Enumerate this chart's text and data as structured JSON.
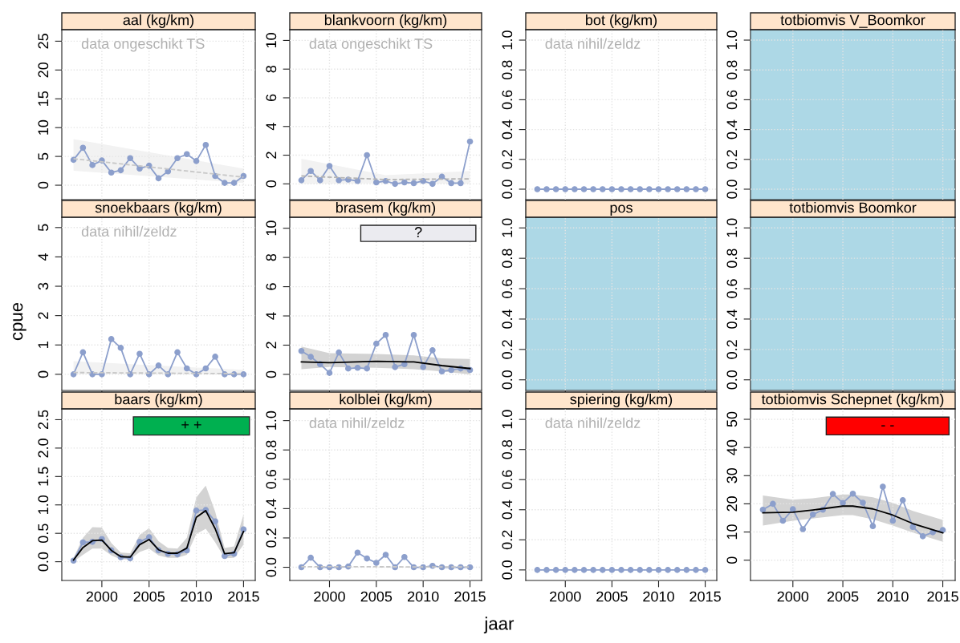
{
  "chart_data": [
    {
      "type": "line",
      "title": "aal (kg/km)",
      "x": [
        1997,
        1998,
        1999,
        2000,
        2001,
        2002,
        2003,
        2004,
        2005,
        2006,
        2007,
        2008,
        2009,
        2010,
        2011,
        2012,
        2013,
        2014,
        2015
      ],
      "xlim": [
        1995.76,
        2016.24
      ],
      "xticks": [
        2000,
        2005,
        2010,
        2015
      ],
      "ylim": [
        -2.5,
        27
      ],
      "yticks": [
        0,
        5,
        10,
        15,
        20,
        25
      ],
      "grid": true,
      "tick_labels": "y",
      "series": [
        {
          "color": "#8c9fcc",
          "marker": "circle",
          "values": [
            4.4,
            6.5,
            3.5,
            4.3,
            2.2,
            2.6,
            4.7,
            2.9,
            3.4,
            1.2,
            2.4,
            4.7,
            5.4,
            4.2,
            7.0,
            1.6,
            0.4,
            0.4,
            1.6
          ]
        },
        {
          "color": "#c8c8c8",
          "marker": "none",
          "line_style": "dashed",
          "x": [
            1997,
            2015
          ],
          "values": [
            4.6,
            1.4
          ],
          "lower": [
            2.5,
            0.4
          ],
          "upper": [
            8.0,
            2.9
          ]
        }
      ],
      "annotations": [
        "data ongeschikt TS"
      ]
    },
    {
      "type": "line",
      "title": "blankvoorn (kg/km)",
      "x": [
        1997,
        1998,
        1999,
        2000,
        2001,
        2002,
        2003,
        2004,
        2005,
        2006,
        2007,
        2008,
        2009,
        2010,
        2011,
        2012,
        2013,
        2014,
        2015
      ],
      "xlim": [
        1995.76,
        2016.24
      ],
      "xticks": [
        2000,
        2005,
        2010,
        2015
      ],
      "ylim": [
        -1.1,
        10.75
      ],
      "yticks": [
        0,
        2,
        4,
        6,
        8,
        10
      ],
      "grid": true,
      "tick_labels": "y",
      "series": [
        {
          "color": "#8c9fcc",
          "marker": "circle",
          "values": [
            0.25,
            0.9,
            0.25,
            1.25,
            0.25,
            0.3,
            0.2,
            2.0,
            0.1,
            0.2,
            0.0,
            0.1,
            0.05,
            0.2,
            0.0,
            0.5,
            0.05,
            0.05,
            2.95
          ]
        },
        {
          "color": "#b4b4b4",
          "marker": "none",
          "line_style": "dashed",
          "x": [
            1997,
            2006,
            2015
          ],
          "values": [
            0.55,
            0.3,
            0.35
          ],
          "lower": [
            0.0,
            0.05,
            0.0
          ],
          "upper": [
            1.75,
            0.6,
            0.9
          ]
        }
      ],
      "annotations": [
        "data ongeschikt TS"
      ]
    },
    {
      "type": "line",
      "title": "bot (kg/km)",
      "x": [
        1997,
        1998,
        1999,
        2000,
        2001,
        2002,
        2003,
        2004,
        2005,
        2006,
        2007,
        2008,
        2009,
        2010,
        2011,
        2012,
        2013,
        2014,
        2015
      ],
      "xlim": [
        1995.76,
        2016.24
      ],
      "xticks": [
        2000,
        2005,
        2010,
        2015
      ],
      "ylim": [
        -0.07,
        1.07
      ],
      "yticks": [
        {
          "value": 0,
          "label": "0.0"
        },
        0.2,
        0.4,
        0.6,
        0.8,
        {
          "value": 1,
          "label": "1.0"
        }
      ],
      "grid": true,
      "tick_labels": "y",
      "series": [
        {
          "color": "#8c9fcc",
          "marker": "circle",
          "values": [
            0,
            0,
            0,
            0,
            0,
            0,
            0,
            0,
            0,
            0,
            0,
            0,
            0,
            0,
            0,
            0,
            0,
            0,
            0
          ]
        }
      ],
      "annotations": [
        "data nihil/zeldz"
      ]
    },
    {
      "type": "line",
      "title": "totbiomvis V_Boomkor",
      "xlim": [
        1995.76,
        2016.24
      ],
      "xticks": [
        2000,
        2005,
        2010,
        2015
      ],
      "ylim": [
        -0.07,
        1.07
      ],
      "yticks": [
        {
          "value": 0,
          "label": "0.0"
        },
        0.2,
        0.4,
        0.6,
        0.8,
        {
          "value": 1,
          "label": "1.0"
        }
      ],
      "grid": true,
      "tick_labels": "y",
      "bands": [
        {
          "axis": "y",
          "from": -0.07,
          "to": 1.07,
          "color": "#add8e6"
        }
      ]
    },
    {
      "type": "line",
      "title": "snoekbaars (kg/km)",
      "ylabel": "cpue",
      "x": [
        1997,
        1998,
        1999,
        2000,
        2001,
        2002,
        2003,
        2004,
        2005,
        2006,
        2007,
        2008,
        2009,
        2010,
        2011,
        2012,
        2013,
        2014,
        2015
      ],
      "xlim": [
        1995.76,
        2016.24
      ],
      "xticks": [
        2000,
        2005,
        2010,
        2015
      ],
      "ylim": [
        -0.55,
        5.35
      ],
      "yticks": [
        0,
        1,
        2,
        3,
        4,
        5
      ],
      "grid": true,
      "tick_labels": "y",
      "series": [
        {
          "color": "#8c9fcc",
          "marker": "circle",
          "values": [
            0,
            0.75,
            0,
            0,
            1.2,
            0.9,
            0,
            0.7,
            0,
            0.3,
            0,
            0.75,
            0.2,
            0,
            0.2,
            0.6,
            0,
            0,
            0
          ]
        },
        {
          "color": "#c8c8c8",
          "marker": "none",
          "line_style": "dashed",
          "x": [
            1997,
            2015
          ],
          "values": [
            0.06,
            0.02
          ],
          "lower": [
            0.0,
            0.0
          ],
          "upper": [
            0.45,
            0.15
          ]
        }
      ],
      "annotations": [
        "data nihil/zeldz"
      ]
    },
    {
      "type": "line",
      "title": "brasem (kg/km)",
      "x": [
        1997,
        1998,
        1999,
        2000,
        2001,
        2002,
        2003,
        2004,
        2005,
        2006,
        2007,
        2008,
        2009,
        2010,
        2011,
        2012,
        2013,
        2014,
        2015
      ],
      "xlim": [
        1995.76,
        2016.24
      ],
      "xticks": [
        2000,
        2005,
        2010,
        2015
      ],
      "ylim": [
        -1.1,
        10.75
      ],
      "yticks": [
        0,
        2,
        4,
        6,
        8,
        10
      ],
      "grid": true,
      "tick_labels": "y",
      "series": [
        {
          "color": "#8c9fcc",
          "marker": "circle",
          "values": [
            1.6,
            1.2,
            0.7,
            0.1,
            1.5,
            0.4,
            0.45,
            0.4,
            2.1,
            2.7,
            0.5,
            0.7,
            2.7,
            0.5,
            1.65,
            0.2,
            0.3,
            0.4,
            0.3
          ]
        },
        {
          "color": "#000000",
          "marker": "none",
          "line_style": "solid",
          "x": [
            1997,
            2000,
            2005,
            2009,
            2012,
            2015
          ],
          "values": [
            0.85,
            0.8,
            0.9,
            0.85,
            0.6,
            0.4
          ],
          "lower": [
            0.35,
            0.5,
            0.45,
            0.35,
            0.2,
            0.0
          ],
          "upper": [
            1.9,
            1.45,
            1.4,
            1.3,
            1.1,
            1.05
          ]
        }
      ],
      "bands": [
        {
          "axis": "y",
          "from": 9.1,
          "to": 10.2,
          "label": "?",
          "color": "#ebebf0"
        }
      ]
    },
    {
      "type": "line",
      "title": "pos",
      "xlim": [
        1995.76,
        2016.24
      ],
      "xticks": [
        2000,
        2005,
        2010,
        2015
      ],
      "ylim": [
        -0.07,
        1.07
      ],
      "yticks": [
        {
          "value": 0,
          "label": "0.0"
        },
        0.2,
        0.4,
        0.6,
        0.8,
        {
          "value": 1,
          "label": "1.0"
        }
      ],
      "grid": true,
      "tick_labels": "y",
      "bands": [
        {
          "axis": "y",
          "from": -0.07,
          "to": 1.07,
          "color": "#add8e6"
        }
      ]
    },
    {
      "type": "line",
      "title": "totbiomvis Boomkor",
      "xlim": [
        1995.76,
        2016.24
      ],
      "xticks": [
        2000,
        2005,
        2010,
        2015
      ],
      "ylim": [
        -0.07,
        1.07
      ],
      "yticks": [
        {
          "value": 0,
          "label": "0.0"
        },
        0.2,
        0.4,
        0.6,
        0.8,
        {
          "value": 1,
          "label": "1.0"
        }
      ],
      "grid": true,
      "tick_labels": "y",
      "bands": [
        {
          "axis": "y",
          "from": -0.07,
          "to": 1.07,
          "color": "#add8e6"
        }
      ]
    },
    {
      "type": "line",
      "title": "baars (kg/km)",
      "x": [
        1997,
        1998,
        1999,
        2000,
        2001,
        2002,
        2003,
        2004,
        2005,
        2006,
        2007,
        2008,
        2009,
        2010,
        2011,
        2012,
        2013,
        2014,
        2015
      ],
      "xlim": [
        1995.76,
        2016.24
      ],
      "xticks": [
        2000,
        2005,
        2010,
        2015
      ],
      "ylim": [
        -0.33,
        2.69
      ],
      "yticks": [
        {
          "value": 0,
          "label": "0.0"
        },
        0.5,
        {
          "value": 1,
          "label": "1.0"
        },
        1.5,
        {
          "value": 2,
          "label": "2.0"
        },
        2.5
      ],
      "grid": true,
      "series": [
        {
          "color": "#8c9fcc",
          "marker": "circle",
          "values": [
            0.02,
            0.34,
            0.35,
            0.4,
            0.2,
            0.08,
            0.06,
            0.35,
            0.43,
            0.2,
            0.14,
            0.13,
            0.2,
            0.9,
            0.91,
            0.71,
            0.1,
            0.14,
            0.57
          ]
        },
        {
          "color": "#000000",
          "marker": "none",
          "line_style": "solid",
          "values": [
            0.03,
            0.25,
            0.37,
            0.38,
            0.2,
            0.09,
            0.08,
            0.3,
            0.39,
            0.21,
            0.15,
            0.15,
            0.24,
            0.78,
            0.9,
            0.58,
            0.14,
            0.16,
            0.53
          ],
          "lower": [
            0,
            0.12,
            0.23,
            0.23,
            0.11,
            0.04,
            0.04,
            0.17,
            0.23,
            0.11,
            0.07,
            0.07,
            0.12,
            0.49,
            0.58,
            0.34,
            0.06,
            0.07,
            0.3
          ],
          "upper": [
            0.07,
            0.42,
            0.61,
            0.6,
            0.33,
            0.16,
            0.15,
            0.47,
            0.59,
            0.36,
            0.24,
            0.23,
            0.42,
            1.13,
            1.34,
            0.88,
            0.24,
            0.27,
            0.83
          ]
        }
      ],
      "bands": [
        {
          "axis": "y",
          "from": 2.23,
          "to": 2.55,
          "label": "+ +",
          "color": "#00b050"
        }
      ]
    },
    {
      "type": "line",
      "title": "kolblei (kg/km)",
      "x": [
        1997,
        1998,
        1999,
        2000,
        2001,
        2002,
        2003,
        2004,
        2005,
        2006,
        2007,
        2008,
        2009,
        2010,
        2011,
        2012,
        2013,
        2014,
        2015
      ],
      "xlim": [
        1995.76,
        2016.24
      ],
      "xticks": [
        2000,
        2005,
        2010,
        2015
      ],
      "ylim": [
        -0.09,
        1.08
      ],
      "yticks": [
        {
          "value": 0,
          "label": "0.0"
        },
        0.2,
        0.4,
        0.6,
        0.8,
        {
          "value": 1,
          "label": "1.0"
        }
      ],
      "grid": true,
      "series": [
        {
          "color": "#8c9fcc",
          "marker": "circle",
          "values": [
            0,
            0.065,
            0,
            0,
            0,
            0.005,
            0.1,
            0.06,
            0.03,
            0.085,
            0,
            0.07,
            0,
            0,
            0.01,
            0,
            0,
            0,
            0
          ]
        },
        {
          "color": "#c8c8c8",
          "marker": "none",
          "line_style": "dashed",
          "x": [
            1997,
            2015
          ],
          "values": [
            0.004,
            0.002
          ]
        }
      ],
      "annotations": [
        "data nihil/zeldz"
      ]
    },
    {
      "type": "line",
      "title": "spiering (kg/km)",
      "xlabel": "jaar",
      "x": [
        1997,
        1998,
        1999,
        2000,
        2001,
        2002,
        2003,
        2004,
        2005,
        2006,
        2007,
        2008,
        2009,
        2010,
        2011,
        2012,
        2013,
        2014,
        2015
      ],
      "xlim": [
        1995.76,
        2016.24
      ],
      "xticks": [
        2000,
        2005,
        2010,
        2015
      ],
      "ylim": [
        -0.07,
        1.07
      ],
      "yticks": [
        {
          "value": 0,
          "label": "0.0"
        },
        0.2,
        0.4,
        0.6,
        0.8,
        {
          "value": 1,
          "label": "1.0"
        }
      ],
      "grid": true,
      "series": [
        {
          "color": "#8c9fcc",
          "marker": "circle",
          "values": [
            0,
            0,
            0,
            0,
            0,
            0,
            0,
            0,
            0,
            0,
            0,
            0,
            0,
            0,
            0,
            0,
            0,
            0,
            0
          ]
        }
      ],
      "annotations": [
        "data nihil/zeldz"
      ]
    },
    {
      "type": "line",
      "title": "totbiomvis Schepnet (kg/km)",
      "x": [
        1997,
        1998,
        1999,
        2000,
        2001,
        2002,
        2003,
        2004,
        2005,
        2006,
        2007,
        2008,
        2009,
        2010,
        2011,
        2012,
        2013,
        2014,
        2015
      ],
      "xlim": [
        1995.76,
        2016.24
      ],
      "xticks": [
        2000,
        2005,
        2010,
        2015
      ],
      "ylim": [
        -7.2,
        53.7
      ],
      "yticks": [
        0,
        10,
        20,
        30,
        40,
        50
      ],
      "grid": true,
      "series": [
        {
          "color": "#8c9fcc",
          "marker": "circle",
          "values": [
            17.9,
            20.0,
            14.0,
            18.1,
            11.0,
            16.2,
            17.9,
            23.5,
            20.3,
            23.6,
            20.4,
            12.1,
            26.1,
            14.0,
            21.3,
            11.8,
            8.5,
            9.9,
            10.7
          ]
        },
        {
          "color": "#000000",
          "marker": "none",
          "line_style": "solid",
          "x": [
            1997,
            2000,
            2002,
            2005,
            2006,
            2008,
            2010,
            2012,
            2015
          ],
          "values": [
            16.8,
            17.0,
            17.8,
            19.2,
            19.2,
            18.2,
            16.0,
            13.0,
            9.7
          ],
          "lower": [
            12.3,
            14.0,
            14.8,
            16.0,
            16.0,
            14.5,
            12.3,
            9.8,
            6.5
          ],
          "upper": [
            23.0,
            21.5,
            22.0,
            23.3,
            23.3,
            22.3,
            20.3,
            17.5,
            14.3
          ]
        }
      ],
      "bands": [
        {
          "axis": "y",
          "from": 44.5,
          "to": 50.8,
          "label": "- -",
          "color": "#ff0000"
        }
      ]
    }
  ]
}
